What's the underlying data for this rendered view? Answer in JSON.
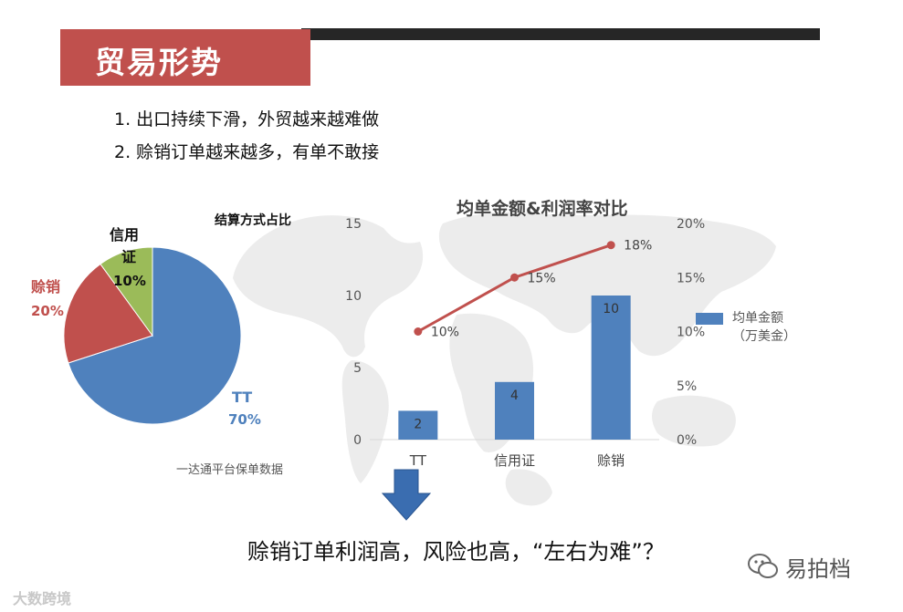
{
  "slide": {
    "title": "贸易形势",
    "bullets": [
      "1. 出口持续下滑，外贸越来越难做",
      "2. 赊销订单越来越多，有单不敢接"
    ],
    "conclusion": "赊销订单利润高，风险也高，“左右为难”？",
    "source_note": "一达通平台保单数据",
    "watermark_left": "大数跨境",
    "watermark_right": "易拍档"
  },
  "colors": {
    "accent": "#c0504d",
    "bar": "#4f81bd",
    "tt": "#4f81bd",
    "lc": "#9bbb59",
    "credit": "#c0504d",
    "arrow": "#3a6db0"
  },
  "chart_data": [
    {
      "type": "pie",
      "title": "结算方式占比",
      "slices": [
        {
          "label": "TT",
          "pct_label": "70%",
          "value": 70
        },
        {
          "label": "信用证",
          "pct_label": "10%",
          "value": 10
        },
        {
          "label": "赊销",
          "pct_label": "20%",
          "value": 20
        }
      ]
    },
    {
      "type": "bar",
      "title": "均单金额&利润率对比",
      "categories": [
        "TT",
        "信用证",
        "赊销"
      ],
      "series": [
        {
          "name": "均单金额（万美金）",
          "values": [
            2,
            4,
            10
          ],
          "axis": "left"
        }
      ],
      "line_series": {
        "values": [
          10,
          15,
          18
        ],
        "labels": [
          "10%",
          "15%",
          "18%"
        ],
        "axis": "right"
      },
      "ylim": [
        0,
        15
      ],
      "yticks": [
        "0",
        "5",
        "10",
        "15"
      ],
      "y2lim": [
        0,
        20
      ],
      "y2ticks": [
        "0%",
        "5%",
        "10%",
        "15%",
        "20%"
      ],
      "legend": {
        "label_line1": "均单金额",
        "label_line2": "（万美金）"
      }
    }
  ]
}
